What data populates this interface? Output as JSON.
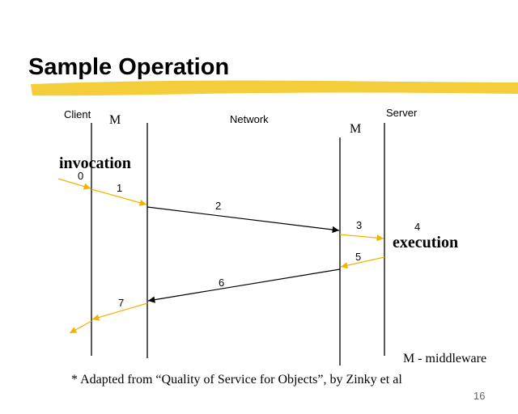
{
  "header": {
    "title": "Sample Operation"
  },
  "lanes": [
    "Client",
    "M",
    "Network",
    "M",
    "Server"
  ],
  "events": {
    "invocation": "invocation",
    "execution": "execution"
  },
  "steps": [
    "0",
    "1",
    "2",
    "3",
    "4",
    "5",
    "6",
    "7"
  ],
  "legend": "M - middleware",
  "footnote": "* Adapted from  “Quality of Service for Objects”, by Zinky et al",
  "page_number": "16"
}
